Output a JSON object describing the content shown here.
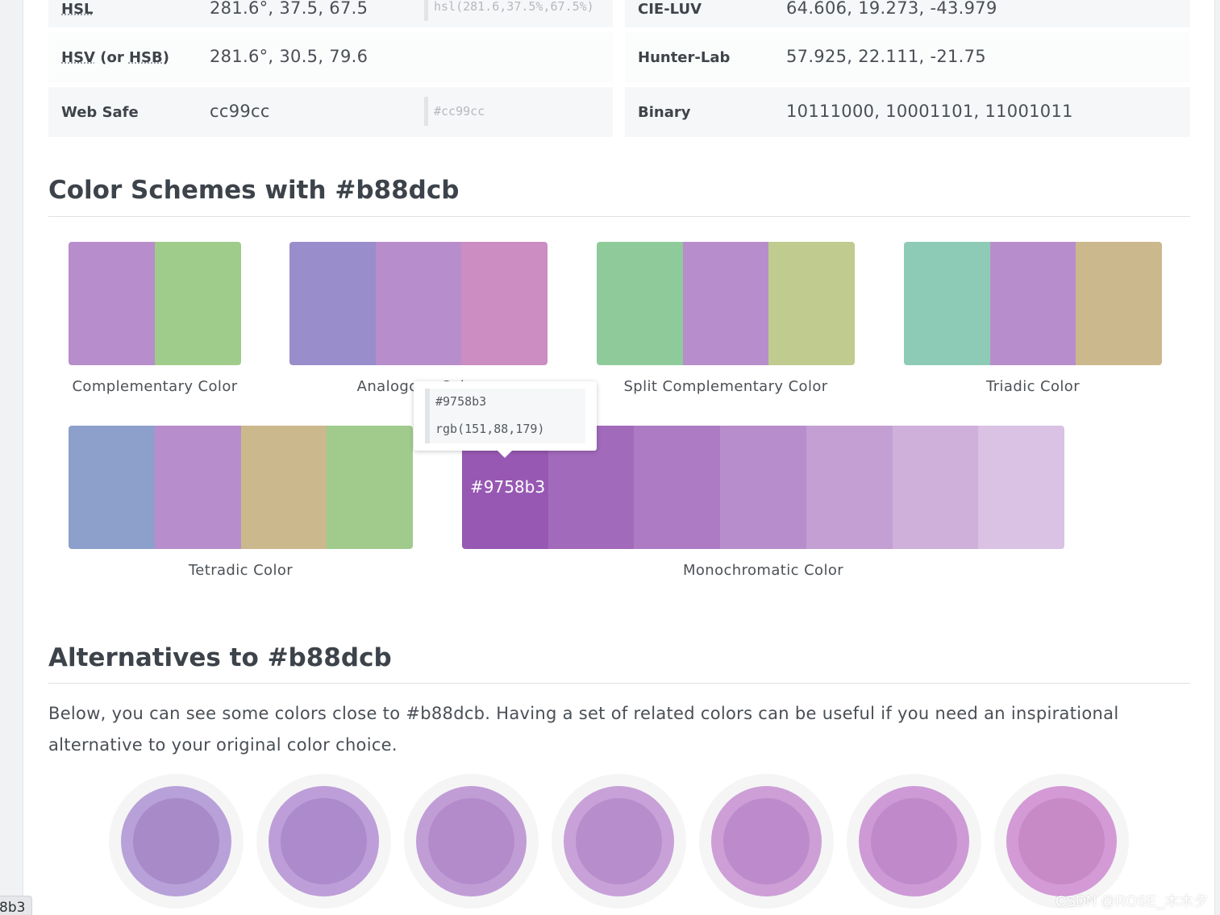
{
  "conversion_table": {
    "left": [
      {
        "label_abbr": "HSL",
        "label_rest": "",
        "value": "281.6°, 37.5, 67.5",
        "css": "hsl(281.6,37.5%,67.5%)"
      },
      {
        "label_abbr": "HSV",
        "label_mid": " (or ",
        "label_abbr2": "HSB",
        "label_end": ")",
        "value": "281.6°, 30.5, 79.6"
      },
      {
        "label": "Web Safe",
        "value": "cc99cc",
        "css": "#cc99cc"
      }
    ],
    "right": [
      {
        "label": "CIE-LUV",
        "value": "64.606, 19.273, -43.979"
      },
      {
        "label": "Hunter-Lab",
        "value": "57.925, 22.111, -21.75"
      },
      {
        "label": "Binary",
        "value": "10111000, 10001101, 11001011"
      }
    ]
  },
  "schemes_section": {
    "title": "Color Schemes with #b88dcb",
    "schemes": [
      {
        "label": "Complementary Color",
        "colors": [
          "#b88dcb",
          "#a0cc8b"
        ]
      },
      {
        "label": "Analogous Color",
        "colors": [
          "#998dcb",
          "#b88dcb",
          "#cb8dc2"
        ]
      },
      {
        "label": "Split Complementary Color",
        "colors": [
          "#8fcb9a",
          "#b88dcb",
          "#bfcb8f"
        ]
      },
      {
        "label": "Triadic Color",
        "colors": [
          "#8dcbb6",
          "#b88dcb",
          "#cbb88d"
        ]
      },
      {
        "label": "Tetradic Color",
        "colors": [
          "#8da0cb",
          "#b88dcb",
          "#cbb88d",
          "#a0cb8d"
        ]
      },
      {
        "label": "Monochromatic Color",
        "colors": [
          "#9758b3",
          "#a26abb",
          "#ad7bc3",
          "#b88dcb",
          "#c39fd3",
          "#ceb0db",
          "#d9c2e3"
        ],
        "hover_hex": "#9758b3"
      }
    ],
    "tooltip": {
      "hex": "#9758b3",
      "rgb": "rgb(151,88,179)"
    }
  },
  "alternatives_section": {
    "title": "Alternatives to #b88dcb",
    "description": "Below, you can see some colors close to #b88dcb. Having a set of related colors can be useful if you need an inspirational alternative to your original color choice.",
    "swatches": [
      {
        "outer": "#b8a1d8",
        "inner": "#a88ac9"
      },
      {
        "outer": "#bd9ed8",
        "inner": "#ad8acb"
      },
      {
        "outer": "#c19dd6",
        "inner": "#b38bcb"
      },
      {
        "outer": "#c8a1d8",
        "inner": "#b88dcb"
      },
      {
        "outer": "#cd9fd6",
        "inner": "#bd8acb"
      },
      {
        "outer": "#cd9ad6",
        "inner": "#c089c9"
      },
      {
        "outer": "#d39ad6",
        "inner": "#c78ac6"
      }
    ]
  },
  "left_badge": "8b3",
  "watermark": "CSDN @ROSE_木木夕"
}
